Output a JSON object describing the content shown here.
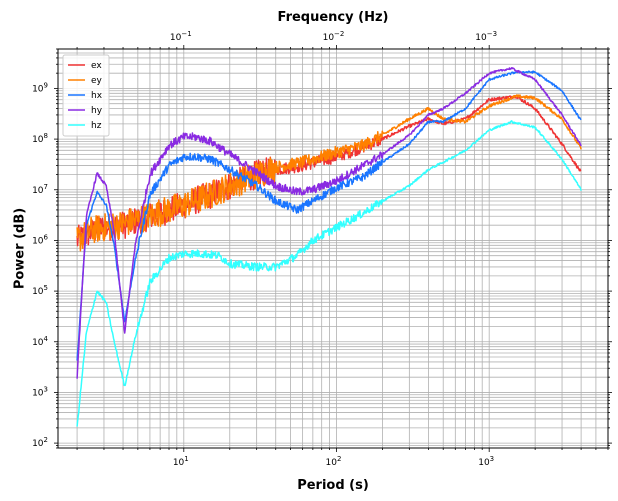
{
  "chart_data": {
    "type": "line",
    "title": "",
    "xlabel": "Period (s)",
    "ylabel": "Power (dB)",
    "x2label": "Frequency (Hz)",
    "xscale": "log",
    "yscale": "log",
    "xlim": [
      1.5,
      6000
    ],
    "ylim": [
      80,
      6000000000
    ],
    "grid": true,
    "legend_position": "top-left",
    "x_ticks": [
      {
        "value": 10,
        "base": "10",
        "exp": "1"
      },
      {
        "value": 100,
        "base": "10",
        "exp": "2"
      },
      {
        "value": 1000,
        "base": "10",
        "exp": "3"
      }
    ],
    "x2_ticks": [
      {
        "value": 10,
        "base": "10",
        "exp": "−1"
      },
      {
        "value": 100,
        "base": "10",
        "exp": "−2"
      },
      {
        "value": 1000,
        "base": "10",
        "exp": "−3"
      }
    ],
    "y_ticks": [
      {
        "value": 100,
        "base": "10",
        "exp": "2"
      },
      {
        "value": 1000,
        "base": "10",
        "exp": "3"
      },
      {
        "value": 10000,
        "base": "10",
        "exp": "4"
      },
      {
        "value": 100000,
        "base": "10",
        "exp": "5"
      },
      {
        "value": 1000000,
        "base": "10",
        "exp": "6"
      },
      {
        "value": 10000000,
        "base": "10",
        "exp": "7"
      },
      {
        "value": 100000000,
        "base": "10",
        "exp": "8"
      },
      {
        "value": 1000000000,
        "base": "10",
        "exp": "9"
      }
    ],
    "series": [
      {
        "name": "ex",
        "color": "#ef3333",
        "x": [
          2,
          2.5,
          3,
          4,
          5,
          7,
          10,
          15,
          20,
          30,
          40,
          60,
          100,
          150,
          200,
          300,
          400,
          500,
          700,
          1000,
          1500,
          2000,
          3000,
          4000
        ],
        "y": [
          1000000,
          1500000,
          1800000,
          2000000,
          2500000,
          3500000,
          5000000,
          8000000,
          12000000,
          20000000,
          25000000,
          30000000,
          45000000,
          70000000,
          100000000,
          180000000,
          250000000,
          200000000,
          250000000,
          600000000,
          700000000,
          400000000,
          80000000,
          22000000
        ]
      },
      {
        "name": "ey",
        "color": "#ff8000",
        "x": [
          2,
          2.5,
          3,
          4,
          5,
          7,
          10,
          15,
          20,
          30,
          40,
          60,
          100,
          150,
          200,
          300,
          400,
          500,
          700,
          1000,
          1500,
          2000,
          3000,
          4000
        ],
        "y": [
          1000000,
          1600000,
          1800000,
          2100000,
          2600000,
          3600000,
          5000000,
          8000000,
          12000000,
          20000000,
          28000000,
          35000000,
          55000000,
          75000000,
          120000000,
          250000000,
          400000000,
          250000000,
          220000000,
          450000000,
          700000000,
          650000000,
          250000000,
          65000000
        ]
      },
      {
        "name": "hx",
        "color": "#1a75ff",
        "x": [
          2,
          2.3,
          2.7,
          3.1,
          3.5,
          4.1,
          4.8,
          6,
          8,
          10,
          12,
          15,
          20,
          30,
          40,
          55,
          70,
          100,
          150,
          200,
          300,
          400,
          500,
          700,
          1000,
          1500,
          2000,
          3000,
          4000
        ],
        "y": [
          4000,
          2000000,
          9000000,
          5000000,
          800000,
          25000,
          400000,
          8000000,
          30000000,
          45000000,
          45000000,
          40000000,
          25000000,
          12000000,
          6000000,
          4000000,
          6000000,
          11000000,
          18000000,
          35000000,
          80000000,
          220000000,
          220000000,
          400000000,
          1500000000,
          2100000000,
          2100000000,
          900000000,
          230000000
        ]
      },
      {
        "name": "hy",
        "color": "#8a2be2",
        "x": [
          2,
          2.3,
          2.7,
          3.1,
          3.5,
          4.1,
          4.8,
          6,
          8,
          10,
          12,
          15,
          20,
          30,
          40,
          55,
          70,
          100,
          150,
          200,
          300,
          400,
          500,
          700,
          1000,
          1400,
          2000,
          3000,
          4000
        ],
        "y": [
          2000,
          3000000,
          21000000,
          12000000,
          1500000,
          15000,
          800000,
          20000000,
          75000000,
          110000000,
          110000000,
          90000000,
          50000000,
          22000000,
          12000000,
          9000000,
          10000000,
          15000000,
          30000000,
          50000000,
          120000000,
          300000000,
          400000000,
          800000000,
          2000000000,
          2500000000,
          1500000000,
          300000000,
          75000000
        ]
      },
      {
        "name": "hz",
        "color": "#33ffff",
        "x": [
          2,
          2.3,
          2.7,
          3.1,
          3.5,
          4.1,
          4.8,
          6,
          8,
          10,
          13,
          17,
          20,
          30,
          40,
          55,
          70,
          100,
          150,
          200,
          300,
          400,
          500,
          700,
          1000,
          1400,
          2000,
          3000,
          4000
        ],
        "y": [
          200,
          15000,
          100000,
          60000,
          10000,
          1300,
          12000,
          150000,
          450000,
          550000,
          550000,
          500000,
          350000,
          300000,
          300000,
          500000,
          1000000,
          1800000,
          3500000,
          6000000,
          12000000,
          25000000,
          35000000,
          60000000,
          150000000,
          220000000,
          170000000,
          40000000,
          10000000
        ]
      }
    ]
  }
}
